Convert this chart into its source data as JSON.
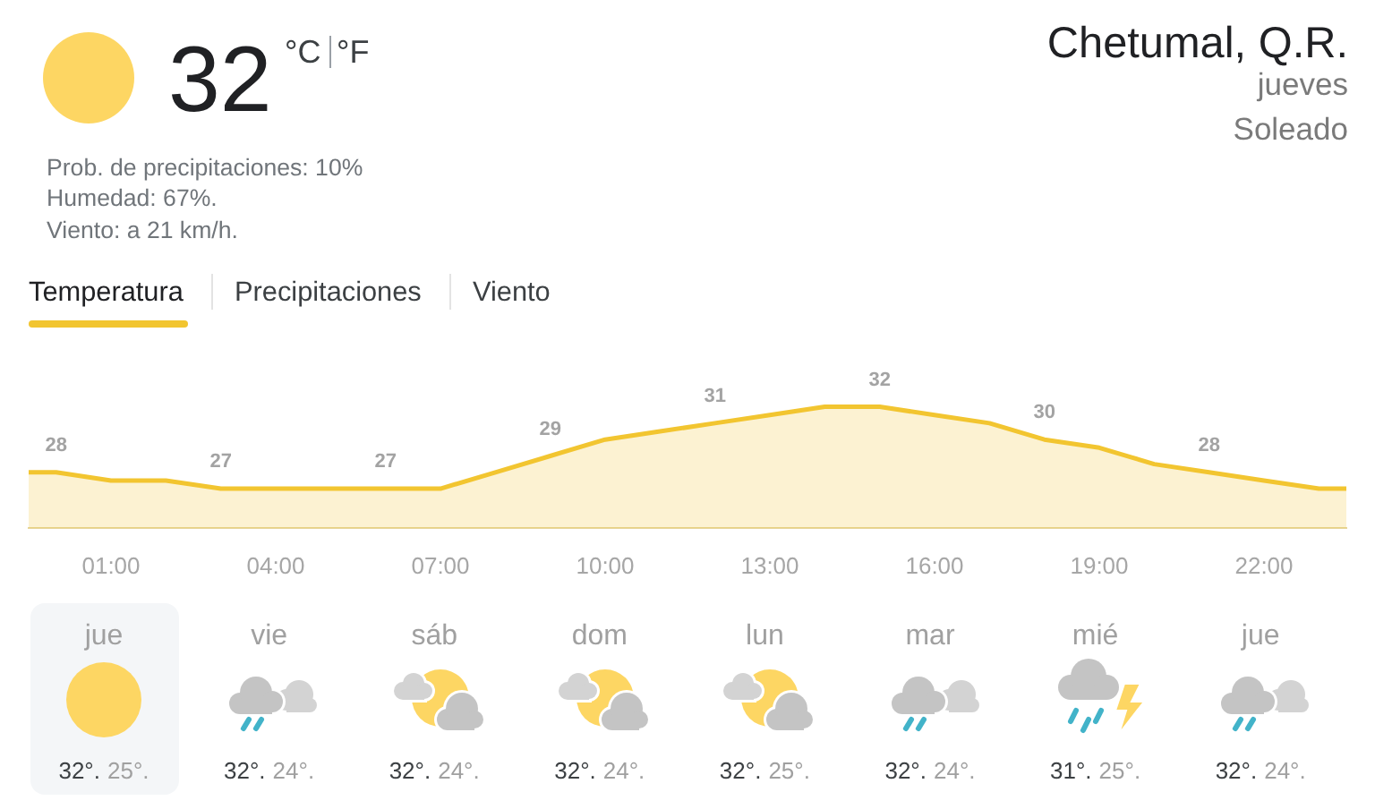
{
  "chart_data": [
    {
      "type": "other",
      "annotations": [
        "32",
        "°C",
        "°F",
        "Prob. de precipitaciones: 10%",
        "Humedad: 67%.",
        "Viento: a 21 km/h.",
        "Chetumal, Q.R.",
        "jueves",
        "Soleado",
        "Temperatura",
        "Precipitaciones",
        "Viento"
      ]
    },
    {
      "type": "area",
      "x": [
        -0.5,
        0,
        1,
        2,
        3,
        4,
        5,
        6,
        7,
        8,
        9,
        10,
        11,
        12,
        13,
        14,
        15,
        16,
        17,
        18,
        19,
        20,
        21,
        22,
        23,
        23.5
      ],
      "values": [
        28,
        28,
        27.5,
        27.5,
        27,
        27,
        27,
        27,
        27,
        28,
        29,
        30,
        30.5,
        31,
        31.5,
        32,
        32,
        31.5,
        31,
        30,
        29.5,
        28.5,
        28,
        27.5,
        27,
        27
      ],
      "color": "#f2c530",
      "value_labels": [
        null,
        "28",
        null,
        null,
        "27",
        null,
        null,
        "27",
        null,
        null,
        "29",
        null,
        null,
        "31",
        null,
        null,
        "32",
        null,
        null,
        "30",
        null,
        null,
        "28",
        null,
        null,
        null
      ],
      "xlim": [
        -0.5,
        23.5
      ],
      "xticks": [
        {
          "value": 1,
          "label": "01:00"
        },
        {
          "value": 4,
          "label": "04:00"
        },
        {
          "value": 7,
          "label": "07:00"
        },
        {
          "value": 10,
          "label": "10:00"
        },
        {
          "value": 13,
          "label": "13:00"
        },
        {
          "value": 16,
          "label": "16:00"
        },
        {
          "value": 19,
          "label": "19:00"
        },
        {
          "value": 22,
          "label": "22:00"
        }
      ],
      "tick_labels": "x"
    },
    {
      "type": "other",
      "annotations": [
        "jue",
        "32°.",
        "25°.",
        "vie",
        "32°.",
        "24°.",
        "sáb",
        "32°.",
        "24°.",
        "dom",
        "32°.",
        "24°.",
        "lun",
        "32°.",
        "25°.",
        "mar",
        "32°.",
        "24°.",
        "mié",
        "31°.",
        "25°.",
        "jue",
        "32°.",
        "24°."
      ]
    }
  ]
}
